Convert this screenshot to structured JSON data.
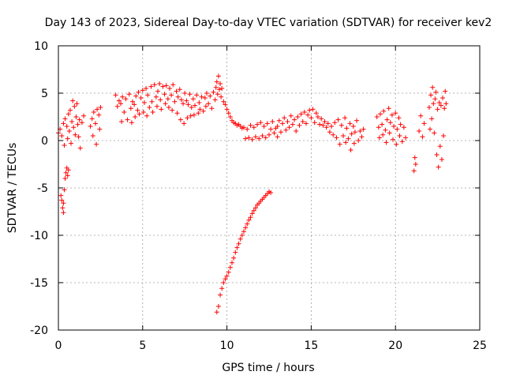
{
  "chart_data": {
    "type": "scatter",
    "title": "Day 143 of 2023, Sidereal Day-to-day VTEC variation (SDTVAR) for receiver kev2",
    "xlabel": "GPS time / hours",
    "ylabel": "SDTVAR / TECUs",
    "xlim": [
      0,
      25
    ],
    "ylim": [
      -20,
      10
    ],
    "xticks": [
      "0",
      "5",
      "10",
      "15",
      "20",
      "25"
    ],
    "yticks": [
      "10",
      "5",
      "0",
      "-5",
      "-10",
      "-15",
      "-20"
    ],
    "grid": true,
    "marker": "+",
    "series_color": "#ff0000",
    "series": [
      {
        "name": "main-band",
        "points": [
          [
            0.0,
            0.8
          ],
          [
            0.1,
            1.2
          ],
          [
            0.2,
            0.5
          ],
          [
            0.3,
            1.8
          ],
          [
            0.35,
            -0.5
          ],
          [
            0.4,
            2.3
          ],
          [
            0.5,
            1.5
          ],
          [
            0.55,
            0.2
          ],
          [
            0.6,
            2.8
          ],
          [
            0.65,
            1.0
          ],
          [
            0.7,
            3.2
          ],
          [
            0.75,
            -0.3
          ],
          [
            0.8,
            2.0
          ],
          [
            0.85,
            4.2
          ],
          [
            0.9,
            1.4
          ],
          [
            0.95,
            3.6
          ],
          [
            1.0,
            0.6
          ],
          [
            1.05,
            2.5
          ],
          [
            1.1,
            3.9
          ],
          [
            1.15,
            1.7
          ],
          [
            1.2,
            0.4
          ],
          [
            1.25,
            2.2
          ],
          [
            1.3,
            -0.8
          ],
          [
            1.4,
            1.9
          ],
          [
            1.5,
            2.6
          ],
          [
            1.9,
            1.5
          ],
          [
            2.0,
            2.3
          ],
          [
            2.05,
            0.5
          ],
          [
            2.1,
            3.0
          ],
          [
            2.2,
            1.8
          ],
          [
            2.25,
            -0.4
          ],
          [
            2.3,
            3.3
          ],
          [
            2.4,
            2.7
          ],
          [
            2.45,
            1.2
          ],
          [
            2.5,
            3.5
          ],
          [
            3.4,
            4.8
          ],
          [
            3.5,
            3.6
          ],
          [
            3.6,
            4.2
          ],
          [
            3.7,
            3.9
          ],
          [
            3.75,
            2.0
          ],
          [
            3.8,
            4.6
          ],
          [
            3.9,
            3.0
          ],
          [
            4.0,
            4.4
          ],
          [
            4.1,
            2.2
          ],
          [
            4.2,
            4.9
          ],
          [
            4.3,
            3.4
          ],
          [
            4.35,
            1.9
          ],
          [
            4.4,
            4.1
          ],
          [
            4.5,
            3.8
          ],
          [
            4.55,
            2.5
          ],
          [
            4.6,
            4.7
          ],
          [
            4.7,
            3.2
          ],
          [
            4.75,
            5.1
          ],
          [
            4.8,
            2.8
          ],
          [
            4.9,
            4.5
          ],
          [
            5.0,
            5.3
          ],
          [
            5.05,
            3.0
          ],
          [
            5.1,
            4.0
          ],
          [
            5.2,
            5.5
          ],
          [
            5.25,
            2.6
          ],
          [
            5.3,
            4.8
          ],
          [
            5.4,
            3.5
          ],
          [
            5.5,
            5.7
          ],
          [
            5.55,
            4.1
          ],
          [
            5.6,
            3.0
          ],
          [
            5.7,
            5.9
          ],
          [
            5.8,
            4.6
          ],
          [
            5.85,
            3.6
          ],
          [
            5.9,
            5.2
          ],
          [
            6.0,
            6.0
          ],
          [
            6.05,
            4.3
          ],
          [
            6.1,
            3.3
          ],
          [
            6.2,
            5.7
          ],
          [
            6.3,
            4.9
          ],
          [
            6.35,
            3.9
          ],
          [
            6.4,
            5.8
          ],
          [
            6.5,
            4.4
          ],
          [
            6.55,
            3.5
          ],
          [
            6.6,
            5.5
          ],
          [
            6.7,
            4.8
          ],
          [
            6.75,
            3.2
          ],
          [
            6.8,
            5.9
          ],
          [
            6.9,
            4.1
          ],
          [
            7.0,
            5.2
          ],
          [
            7.05,
            2.9
          ],
          [
            7.1,
            4.6
          ],
          [
            7.2,
            5.4
          ],
          [
            7.25,
            2.2
          ],
          [
            7.3,
            4.3
          ],
          [
            7.4,
            3.9
          ],
          [
            7.45,
            1.8
          ],
          [
            7.5,
            5.0
          ],
          [
            7.6,
            4.2
          ],
          [
            7.65,
            2.4
          ],
          [
            7.7,
            3.8
          ],
          [
            7.8,
            4.9
          ],
          [
            7.85,
            2.6
          ],
          [
            7.9,
            3.5
          ],
          [
            8.0,
            4.4
          ],
          [
            8.05,
            2.7
          ],
          [
            8.1,
            3.7
          ],
          [
            8.2,
            4.8
          ],
          [
            8.3,
            2.9
          ],
          [
            8.35,
            4.0
          ],
          [
            8.4,
            3.3
          ],
          [
            8.5,
            4.6
          ],
          [
            8.6,
            3.1
          ],
          [
            8.7,
            4.5
          ],
          [
            8.75,
            3.6
          ],
          [
            8.8,
            5.0
          ],
          [
            8.9,
            3.9
          ],
          [
            9.0,
            4.7
          ],
          [
            9.1,
            3.4
          ],
          [
            9.2,
            5.1
          ],
          [
            9.3,
            4.3
          ],
          [
            9.35,
            5.6
          ],
          [
            9.4,
            6.2
          ],
          [
            9.45,
            4.9
          ],
          [
            9.5,
            6.8
          ],
          [
            9.55,
            5.4
          ],
          [
            9.6,
            6.0
          ],
          [
            9.65,
            4.6
          ],
          [
            9.7,
            5.5
          ],
          [
            9.8,
            4.1
          ],
          [
            9.9,
            3.8
          ],
          [
            10.0,
            3.3
          ],
          [
            10.1,
            2.9
          ],
          [
            10.2,
            2.5
          ],
          [
            10.3,
            2.1
          ],
          [
            10.4,
            1.9
          ],
          [
            10.5,
            1.8
          ],
          [
            10.6,
            1.6
          ],
          [
            10.7,
            1.7
          ],
          [
            10.8,
            1.5
          ],
          [
            10.9,
            1.3
          ],
          [
            11.0,
            1.4
          ],
          [
            11.1,
            0.2
          ],
          [
            11.2,
            1.2
          ],
          [
            11.3,
            0.3
          ],
          [
            11.4,
            1.6
          ],
          [
            11.5,
            0.1
          ],
          [
            11.6,
            1.4
          ],
          [
            11.7,
            0.4
          ],
          [
            11.8,
            1.7
          ],
          [
            11.9,
            0.2
          ],
          [
            12.0,
            1.9
          ],
          [
            12.1,
            0.5
          ],
          [
            12.2,
            1.5
          ],
          [
            12.3,
            0.3
          ],
          [
            12.4,
            1.8
          ],
          [
            12.5,
            0.6
          ],
          [
            12.6,
            1.2
          ],
          [
            12.7,
            2.0
          ],
          [
            12.8,
            0.8
          ],
          [
            12.9,
            1.3
          ],
          [
            13.0,
            0.4
          ],
          [
            13.0,
            1.5
          ],
          [
            13.1,
            2.1
          ],
          [
            13.2,
            0.9
          ],
          [
            13.3,
            1.8
          ],
          [
            13.4,
            2.4
          ],
          [
            13.5,
            1.1
          ],
          [
            13.6,
            2.0
          ],
          [
            13.7,
            1.4
          ],
          [
            13.8,
            2.6
          ],
          [
            13.9,
            1.7
          ],
          [
            14.0,
            2.2
          ],
          [
            14.1,
            1.0
          ],
          [
            14.2,
            2.5
          ],
          [
            14.3,
            1.6
          ],
          [
            14.4,
            2.8
          ],
          [
            14.5,
            2.0
          ],
          [
            14.6,
            3.0
          ],
          [
            14.7,
            1.8
          ],
          [
            14.8,
            2.7
          ],
          [
            14.9,
            3.2
          ],
          [
            15.0,
            2.4
          ],
          [
            15.1,
            3.3
          ],
          [
            15.2,
            1.9
          ],
          [
            15.3,
            2.9
          ],
          [
            15.4,
            2.5
          ],
          [
            15.5,
            1.7
          ],
          [
            15.6,
            2.3
          ],
          [
            15.7,
            1.6
          ],
          [
            15.8,
            2.0
          ],
          [
            15.9,
            1.4
          ],
          [
            16.0,
            1.8
          ],
          [
            16.1,
            0.9
          ],
          [
            16.2,
            1.5
          ],
          [
            16.3,
            0.6
          ],
          [
            16.4,
            1.9
          ],
          [
            16.5,
            0.3
          ],
          [
            16.6,
            2.2
          ],
          [
            16.7,
            -0.4
          ],
          [
            16.8,
            1.6
          ],
          [
            16.9,
            0.5
          ],
          [
            17.0,
            2.4
          ],
          [
            17.05,
            -0.2
          ],
          [
            17.1,
            1.3
          ],
          [
            17.2,
            0.2
          ],
          [
            17.3,
            1.8
          ],
          [
            17.35,
            -1.0
          ],
          [
            17.4,
            0.7
          ],
          [
            17.5,
            1.5
          ],
          [
            17.55,
            -0.3
          ],
          [
            17.6,
            0.9
          ],
          [
            17.7,
            2.1
          ],
          [
            17.8,
            0.0
          ],
          [
            17.9,
            1.0
          ],
          [
            18.0,
            0.4
          ],
          [
            18.1,
            1.2
          ],
          [
            18.9,
            2.5
          ],
          [
            19.0,
            1.4
          ],
          [
            19.05,
            0.3
          ],
          [
            19.1,
            2.8
          ],
          [
            19.2,
            1.7
          ],
          [
            19.25,
            0.6
          ],
          [
            19.3,
            3.1
          ],
          [
            19.4,
            1.1
          ],
          [
            19.45,
            -0.2
          ],
          [
            19.5,
            2.2
          ],
          [
            19.6,
            3.4
          ],
          [
            19.65,
            0.8
          ],
          [
            19.7,
            1.9
          ],
          [
            19.8,
            2.7
          ],
          [
            19.85,
            0.1
          ],
          [
            19.9,
            1.5
          ],
          [
            20.0,
            2.9
          ],
          [
            20.05,
            -0.4
          ],
          [
            20.1,
            1.2
          ],
          [
            20.2,
            2.4
          ],
          [
            20.25,
            0.5
          ],
          [
            20.3,
            1.7
          ],
          [
            20.4,
            -0.1
          ],
          [
            20.5,
            1.4
          ],
          [
            20.6,
            0.3
          ],
          [
            21.1,
            -3.2
          ],
          [
            21.15,
            -1.8
          ],
          [
            21.2,
            -2.5
          ],
          [
            21.4,
            1.0
          ],
          [
            21.5,
            2.6
          ],
          [
            21.6,
            0.4
          ],
          [
            21.7,
            1.8
          ],
          [
            22.0,
            3.5
          ],
          [
            22.05,
            1.2
          ],
          [
            22.1,
            4.8
          ],
          [
            22.15,
            2.3
          ],
          [
            22.2,
            5.6
          ],
          [
            22.25,
            3.9
          ],
          [
            22.3,
            0.8
          ],
          [
            22.35,
            4.4
          ],
          [
            22.4,
            5.1
          ],
          [
            22.45,
            -1.5
          ],
          [
            22.5,
            3.3
          ],
          [
            22.55,
            -2.8
          ],
          [
            22.6,
            4.0
          ],
          [
            22.65,
            -0.6
          ],
          [
            22.7,
            3.7
          ],
          [
            22.75,
            -2.0
          ],
          [
            22.8,
            4.5
          ],
          [
            22.85,
            0.5
          ],
          [
            22.9,
            3.4
          ],
          [
            22.95,
            5.2
          ],
          [
            23.0,
            3.9
          ]
        ]
      },
      {
        "name": "early-dip",
        "points": [
          [
            0.15,
            -5.8
          ],
          [
            0.2,
            -6.3
          ],
          [
            0.25,
            -7.1
          ],
          [
            0.3,
            -6.6
          ],
          [
            0.3,
            -7.6
          ],
          [
            0.35,
            -5.2
          ],
          [
            0.4,
            -4.0
          ],
          [
            0.45,
            -3.4
          ],
          [
            0.5,
            -2.9
          ],
          [
            0.55,
            -3.7
          ],
          [
            0.6,
            -3.1
          ]
        ]
      },
      {
        "name": "descending-track",
        "points": [
          [
            9.4,
            -18.1
          ],
          [
            9.5,
            -17.5
          ],
          [
            9.6,
            -16.3
          ],
          [
            9.7,
            -15.6
          ],
          [
            9.8,
            -15.0
          ],
          [
            9.9,
            -14.6
          ],
          [
            10.0,
            -14.3
          ],
          [
            10.1,
            -13.9
          ],
          [
            10.2,
            -13.4
          ],
          [
            10.3,
            -12.9
          ],
          [
            10.4,
            -12.4
          ],
          [
            10.5,
            -11.8
          ],
          [
            10.6,
            -11.3
          ],
          [
            10.7,
            -10.9
          ],
          [
            10.8,
            -10.4
          ],
          [
            10.9,
            -10.0
          ],
          [
            11.0,
            -9.6
          ],
          [
            11.1,
            -9.2
          ],
          [
            11.2,
            -8.8
          ],
          [
            11.3,
            -8.4
          ],
          [
            11.4,
            -8.1
          ],
          [
            11.5,
            -7.7
          ],
          [
            11.6,
            -7.4
          ],
          [
            11.7,
            -7.1
          ],
          [
            11.8,
            -6.8
          ],
          [
            11.9,
            -6.6
          ],
          [
            12.0,
            -6.4
          ],
          [
            12.1,
            -6.2
          ],
          [
            12.2,
            -6.0
          ],
          [
            12.3,
            -5.8
          ],
          [
            12.4,
            -5.6
          ],
          [
            12.5,
            -5.4
          ],
          [
            12.6,
            -5.5
          ]
        ]
      }
    ]
  }
}
